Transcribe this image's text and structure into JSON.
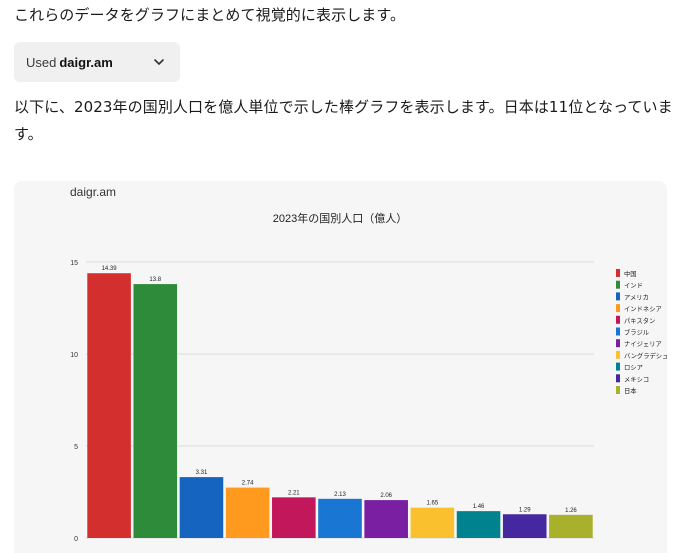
{
  "intro_text": "これらのデータをグラフにまとめて視覚的に表示します。",
  "tool_chip": {
    "used_label": "Used",
    "tool_name": "daigr.am",
    "chevron_icon": "chevron-down-icon"
  },
  "description_text": "以下に、2023年の国別人口を億人単位で示した棒グラフを表示します。日本は11位となっています。",
  "chart_card": {
    "brand": "daigr.am"
  },
  "chart_data": {
    "type": "bar",
    "title": "2023年の国別人口（億人）",
    "xlabel": "",
    "ylabel": "",
    "ylim": [
      0,
      15
    ],
    "yticks": [
      0,
      5,
      10,
      15
    ],
    "grid": true,
    "legend_position": "right",
    "categories": [
      "中国",
      "インド",
      "アメリカ",
      "インドネシア",
      "パキスタン",
      "ブラジル",
      "ナイジェリア",
      "バングラデシュ",
      "ロシア",
      "メキシコ",
      "日本"
    ],
    "values": [
      14.39,
      13.8,
      3.31,
      2.74,
      2.21,
      2.13,
      2.06,
      1.65,
      1.46,
      1.29,
      1.26
    ],
    "value_labels": [
      "14.39",
      "13.8",
      "3.31",
      "2.74",
      "2.21",
      "2.13",
      "2.06",
      "1.65",
      "1.46",
      "1.29",
      "1.26"
    ],
    "colors": [
      "#d32f2f",
      "#2e8b3a",
      "#1565c0",
      "#ff9a1f",
      "#c2185b",
      "#1976d2",
      "#7b1fa2",
      "#fbc02d",
      "#00838f",
      "#4527a0",
      "#a8b02c"
    ]
  }
}
